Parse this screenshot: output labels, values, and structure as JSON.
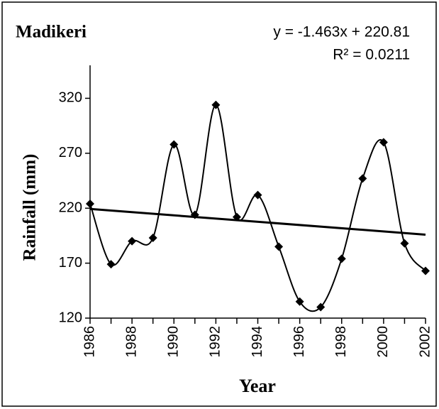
{
  "chart_data": {
    "type": "line",
    "title": "Madikeri",
    "x_label": "Year",
    "y_label": "Rainfall (mm)",
    "categories": [
      "1986",
      null,
      "1988",
      null,
      "1990",
      null,
      "1992",
      null,
      "1994",
      null,
      "1996",
      null,
      "1998",
      null,
      "2000",
      null,
      "2002"
    ],
    "series": [
      {
        "name": "Rainfall",
        "color": "#000000",
        "values": [
          224,
          169,
          190,
          193,
          278,
          214,
          314,
          212,
          232,
          185,
          135,
          130,
          174,
          247,
          280,
          188,
          163
        ]
      }
    ],
    "trendline": {
      "slope": -1.463,
      "intercept": 220.81,
      "equation": "y = -1.463x + 220.81",
      "r2_label": "R² = 0.0211"
    },
    "ylim": [
      120,
      350
    ],
    "yticks": [
      120,
      170,
      220,
      270,
      320
    ],
    "grid": false,
    "smooth": true
  }
}
